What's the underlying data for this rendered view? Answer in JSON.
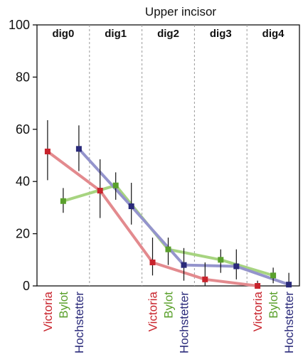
{
  "chart_data": {
    "type": "line",
    "title": "Upper incisor",
    "xlabel": "",
    "ylabel": "",
    "ylim": [
      0,
      100
    ],
    "yticks": [
      0,
      20,
      40,
      60,
      80,
      100
    ],
    "categories": [
      "dig0",
      "dig1",
      "dig2",
      "dig3",
      "dig4"
    ],
    "legend_placement": "below-x-axis-rotated",
    "grid": "vertical dashed separators between categories",
    "series": [
      {
        "name": "Victoria",
        "color": "#c8232c",
        "line_color": "#e38a8e",
        "values": [
          51.5,
          36.5,
          9.0,
          2.5,
          0.0
        ],
        "error_low": [
          40.5,
          26.0,
          4.0,
          0.0,
          0.0
        ],
        "error_high": [
          63.5,
          48.5,
          18.5,
          9.0,
          2.0
        ]
      },
      {
        "name": "Bylot",
        "color": "#5aa02c",
        "line_color": "#a7d480",
        "values": [
          32.5,
          38.5,
          14.0,
          10.0,
          4.0
        ],
        "error_low": [
          28.0,
          33.0,
          8.0,
          5.0,
          1.0
        ],
        "error_high": [
          37.5,
          43.5,
          18.5,
          14.0,
          7.0
        ]
      },
      {
        "name": "Hochstetter",
        "color": "#2a2a7a",
        "line_color": "#9494cc",
        "values": [
          52.5,
          30.5,
          8.0,
          7.5,
          0.5
        ],
        "error_low": [
          44.0,
          23.5,
          2.0,
          2.5,
          0.0
        ],
        "error_high": [
          61.5,
          39.5,
          14.5,
          14.0,
          5.0
        ]
      }
    ],
    "legend_groups": [
      "dig0",
      "dig2",
      "dig4"
    ]
  }
}
